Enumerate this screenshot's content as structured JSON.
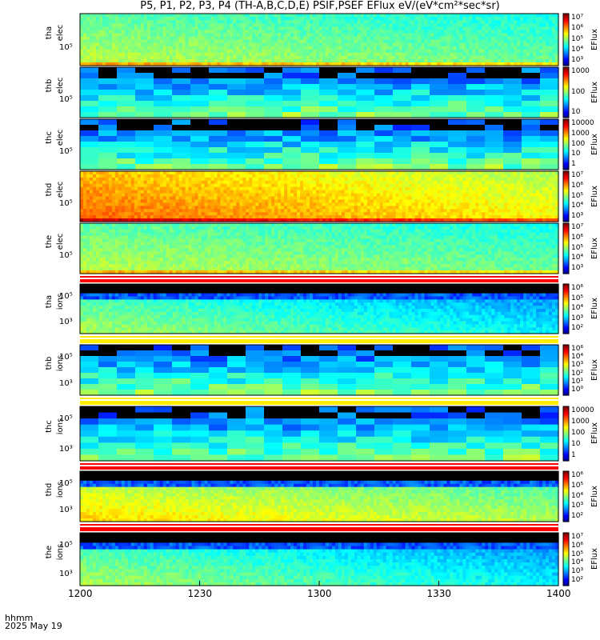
{
  "title": "P5, P1, P2, P3, P4 (TH-A,B,C,D,E) PSIF,PSEF EFlux eV/(eV*cm²*sec*sr)",
  "footer": {
    "line1": "hhmm",
    "line2": "2025 May 19"
  },
  "colorbar_label": "EFlux",
  "chart_data": {
    "type": "heatmap",
    "x_axis": {
      "label": "hhmm",
      "ticks": [
        "1200",
        "1230",
        "1300",
        "1330",
        "1400"
      ],
      "range": [
        "1200",
        "1400"
      ]
    },
    "panels": [
      {
        "probe": "tha",
        "species": "elec",
        "ytick": "10⁵",
        "colorbar_ticks": [
          "10⁷",
          "10⁶",
          "10⁵",
          "10⁴",
          "10³"
        ],
        "blocky": false,
        "base_level": 0.52,
        "trend": -0.08,
        "separator": "none"
      },
      {
        "probe": "thb",
        "species": "elec",
        "ytick": "10⁵",
        "colorbar_ticks": [
          "1000",
          "100",
          "10"
        ],
        "blocky": true,
        "base_level": 0.35,
        "trend": 0.0,
        "separator": "none"
      },
      {
        "probe": "thc",
        "species": "elec",
        "ytick": "10⁵",
        "colorbar_ticks": [
          "10000",
          "1000",
          "100",
          "10",
          "1"
        ],
        "blocky": true,
        "base_level": 0.33,
        "trend": 0.0,
        "separator": "none"
      },
      {
        "probe": "thd",
        "species": "elec",
        "ytick": "10⁵",
        "colorbar_ticks": [
          "10⁷",
          "10⁶",
          "10⁵",
          "10⁴",
          "10³"
        ],
        "blocky": false,
        "base_level": 0.74,
        "trend": -0.15,
        "separator": "none"
      },
      {
        "probe": "the",
        "species": "elec",
        "ytick": "10⁵",
        "colorbar_ticks": [
          "10⁷",
          "10⁶",
          "10⁵",
          "10⁴",
          "10³"
        ],
        "blocky": false,
        "base_level": 0.52,
        "trend": -0.08,
        "separator": "red"
      },
      {
        "probe": "tha",
        "species": "ions",
        "ytick_top": "10⁵",
        "ytick": "10³",
        "colorbar_ticks": [
          "10⁶",
          "10⁵",
          "10⁴",
          "10³",
          "10²"
        ],
        "blocky": false,
        "base_level": 0.48,
        "trend": -0.18,
        "separator": "yellow"
      },
      {
        "probe": "thb",
        "species": "ions",
        "ytick_top": "10⁵",
        "ytick": "10³",
        "colorbar_ticks": [
          "10⁶",
          "10⁴",
          "10³",
          "10²",
          "10¹",
          "10⁰"
        ],
        "blocky": true,
        "base_level": 0.3,
        "trend": 0.0,
        "separator": "yellow"
      },
      {
        "probe": "thc",
        "species": "ions",
        "ytick_top": "10⁵",
        "ytick": "10³",
        "colorbar_ticks": [
          "10000",
          "1000",
          "100",
          "10",
          "1"
        ],
        "blocky": true,
        "base_level": 0.3,
        "trend": 0.0,
        "separator": "red"
      },
      {
        "probe": "thd",
        "species": "ions",
        "ytick_top": "10⁵",
        "ytick": "10³",
        "colorbar_ticks": [
          "10⁶",
          "10⁵",
          "10⁴",
          "10³",
          "10²"
        ],
        "blocky": false,
        "base_level": 0.6,
        "trend": -0.12,
        "separator": "red"
      },
      {
        "probe": "the",
        "species": "ions",
        "ytick_top": "10⁵",
        "ytick": "10³",
        "colorbar_ticks": [
          "10⁷",
          "10⁶",
          "10⁵",
          "10⁴",
          "10³",
          "10²"
        ],
        "blocky": false,
        "base_level": 0.48,
        "trend": -0.18,
        "separator": "none"
      }
    ]
  }
}
